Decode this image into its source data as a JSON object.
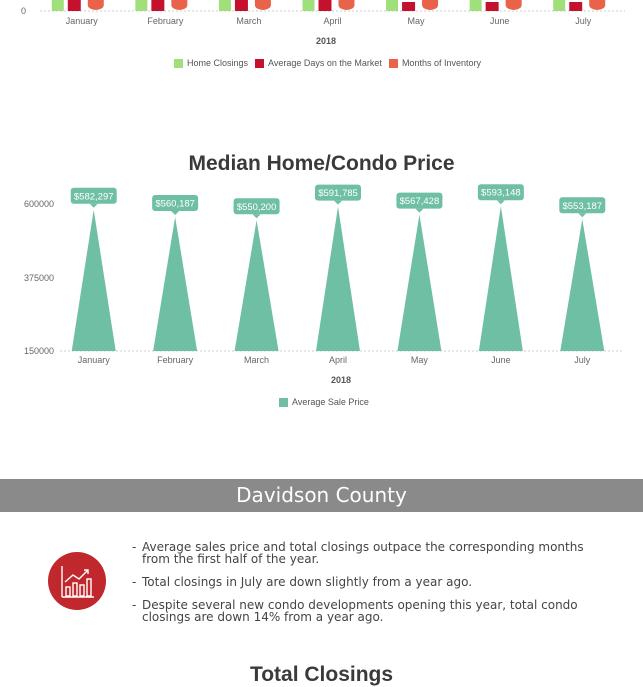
{
  "top_chart": {
    "y_tick_visible": "0",
    "categories": [
      "January",
      "February",
      "March",
      "April",
      "May",
      "June",
      "July"
    ],
    "xlabel": "2018",
    "legend": [
      {
        "label": "Home Closings",
        "color": "#9fe07a"
      },
      {
        "label": "Average Days on the Market",
        "color": "#c4122e"
      },
      {
        "label": "Months of Inventory",
        "color": "#e8634a"
      }
    ]
  },
  "chart_data": [
    {
      "type": "bar",
      "note": "cropped chart at top; only bar bases visible",
      "categories": [
        "January",
        "February",
        "March",
        "April",
        "May",
        "June",
        "July"
      ],
      "xlabel": "2018",
      "series": [
        {
          "name": "Home Closings"
        },
        {
          "name": "Average Days on the Market"
        },
        {
          "name": "Months of Inventory"
        }
      ]
    },
    {
      "type": "area",
      "title": "Median Home/Condo Price",
      "categories": [
        "January",
        "February",
        "March",
        "April",
        "May",
        "June",
        "July"
      ],
      "xlabel": "2018",
      "ylabel": "",
      "ylim": [
        150000,
        650000
      ],
      "yticks": [
        150000,
        375000,
        600000
      ],
      "series": [
        {
          "name": "Average Sale Price",
          "values": [
            582297,
            560187,
            550200,
            591785,
            567428,
            593148,
            553187
          ],
          "labels": [
            "$582,297",
            "$560,187",
            "$550,200",
            "$591,785",
            "$567,428",
            "$593,148",
            "$553,187"
          ],
          "color": "#6fbfa5"
        }
      ],
      "legend_position": "bottom"
    }
  ],
  "price_chart": {
    "title": "Median Home/Condo Price",
    "yticks": [
      "600000",
      "375000",
      "150000"
    ],
    "xlabel": "2018",
    "legend_label": "Average Sale Price",
    "color": "#6fbfa5"
  },
  "county": {
    "banner": "Davidson County",
    "bullets": [
      "Average sales price and total closings outpace the corresponding months from the first half of the year.",
      "Total closings in July are down slightly from a year ago.",
      "Despite several new condo developments opening this year, total condo closings are down 14% from a year ago."
    ],
    "icon": "bar-chart-icon",
    "icon_color": "#c0282e"
  },
  "bottom_title": "Total Closings"
}
